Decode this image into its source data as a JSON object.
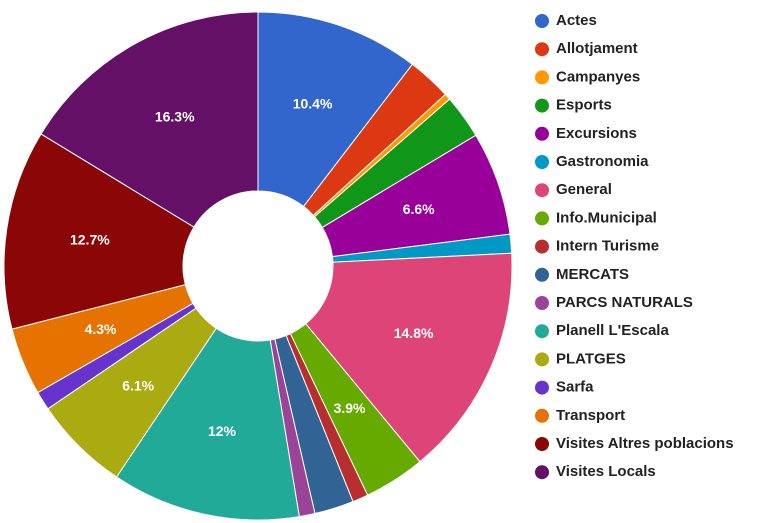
{
  "chart_data": {
    "type": "donut",
    "categories": [
      "Actes",
      "Allotjament",
      "Campanyes",
      "Esports",
      "Excursions",
      "Gastronomia",
      "General",
      "Info.Municipal",
      "Intern Turisme",
      "MERCATS",
      "PARCS NATURALS",
      "Planell L'Escala",
      "PLATGES",
      "Sarfa",
      "Transport",
      "Visites Altres poblacions",
      "Visites Locals"
    ],
    "values": [
      10.4,
      2.8,
      0.4,
      2.8,
      6.6,
      1.2,
      14.8,
      3.9,
      1.0,
      2.5,
      1.0,
      12,
      6.1,
      1.2,
      4.3,
      12.7,
      16.3
    ],
    "value_labels": [
      "10.4%",
      null,
      null,
      null,
      "6.6%",
      null,
      "14.8%",
      "3.9%",
      null,
      null,
      null,
      "12%",
      "6.1%",
      null,
      "4.3%",
      "12.7%",
      "16.3%"
    ],
    "colors": [
      "#3366cc",
      "#dc3912",
      "#ff9900",
      "#109618",
      "#990099",
      "#0099c6",
      "#dd4477",
      "#66aa00",
      "#b82e2e",
      "#316395",
      "#994499",
      "#22aa99",
      "#aaaa11",
      "#6633cc",
      "#e67300",
      "#8b0707",
      "#651067"
    ],
    "legend": "right"
  }
}
